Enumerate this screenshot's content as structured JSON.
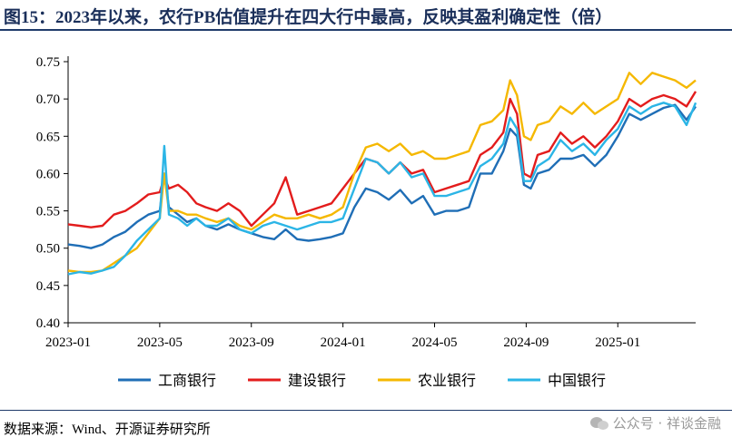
{
  "title": "图15：2023年以来，农行PB估值提升在四大行中最高，反映其盈利确定性（倍）",
  "source": "数据来源：Wind、开源证券研究所",
  "watermark": "公众号 · 祥谈金融",
  "chart_data": {
    "type": "line",
    "title": "",
    "xlabel": "",
    "ylabel": "",
    "ylim": [
      0.4,
      0.75
    ],
    "y_ticks": [
      "0.40",
      "0.45",
      "0.50",
      "0.55",
      "0.60",
      "0.65",
      "0.70",
      "0.75"
    ],
    "x_ticks": [
      "2023-01",
      "2023-05",
      "2023-09",
      "2024-01",
      "2024-05",
      "2024-09",
      "2025-01"
    ],
    "x_tick_months": [
      0,
      4,
      8,
      12,
      16,
      20,
      24
    ],
    "x_range_months": [
      0,
      27.4
    ],
    "legend_position": "bottom",
    "grid": false,
    "series": [
      {
        "name": "工商银行",
        "color": "#1f6eb6",
        "points": [
          [
            0,
            0.505
          ],
          [
            0.5,
            0.503
          ],
          [
            1,
            0.5
          ],
          [
            1.5,
            0.505
          ],
          [
            2,
            0.515
          ],
          [
            2.5,
            0.522
          ],
          [
            3,
            0.535
          ],
          [
            3.5,
            0.545
          ],
          [
            4,
            0.55
          ],
          [
            4.2,
            0.6
          ],
          [
            4.4,
            0.555
          ],
          [
            4.8,
            0.545
          ],
          [
            5.2,
            0.535
          ],
          [
            5.6,
            0.54
          ],
          [
            6,
            0.53
          ],
          [
            6.5,
            0.525
          ],
          [
            7,
            0.532
          ],
          [
            7.5,
            0.525
          ],
          [
            8,
            0.52
          ],
          [
            8.5,
            0.515
          ],
          [
            9,
            0.512
          ],
          [
            9.5,
            0.525
          ],
          [
            10,
            0.512
          ],
          [
            10.5,
            0.51
          ],
          [
            11,
            0.512
          ],
          [
            11.5,
            0.515
          ],
          [
            12,
            0.52
          ],
          [
            12.5,
            0.555
          ],
          [
            13,
            0.58
          ],
          [
            13.5,
            0.575
          ],
          [
            14,
            0.565
          ],
          [
            14.5,
            0.578
          ],
          [
            15,
            0.56
          ],
          [
            15.5,
            0.57
          ],
          [
            16,
            0.545
          ],
          [
            16.5,
            0.55
          ],
          [
            17,
            0.55
          ],
          [
            17.5,
            0.555
          ],
          [
            18,
            0.6
          ],
          [
            18.5,
            0.6
          ],
          [
            19,
            0.63
          ],
          [
            19.3,
            0.66
          ],
          [
            19.6,
            0.65
          ],
          [
            19.9,
            0.585
          ],
          [
            20.2,
            0.58
          ],
          [
            20.5,
            0.6
          ],
          [
            21,
            0.605
          ],
          [
            21.5,
            0.62
          ],
          [
            22,
            0.62
          ],
          [
            22.5,
            0.625
          ],
          [
            23,
            0.61
          ],
          [
            23.5,
            0.625
          ],
          [
            24,
            0.65
          ],
          [
            24.5,
            0.68
          ],
          [
            25,
            0.672
          ],
          [
            25.5,
            0.68
          ],
          [
            26,
            0.688
          ],
          [
            26.5,
            0.692
          ],
          [
            27,
            0.672
          ],
          [
            27.4,
            0.69
          ]
        ]
      },
      {
        "name": "建设银行",
        "color": "#e31c1c",
        "points": [
          [
            0,
            0.532
          ],
          [
            0.5,
            0.53
          ],
          [
            1,
            0.528
          ],
          [
            1.5,
            0.53
          ],
          [
            2,
            0.545
          ],
          [
            2.5,
            0.55
          ],
          [
            3,
            0.56
          ],
          [
            3.5,
            0.572
          ],
          [
            4,
            0.575
          ],
          [
            4.2,
            0.595
          ],
          [
            4.4,
            0.58
          ],
          [
            4.8,
            0.585
          ],
          [
            5.2,
            0.575
          ],
          [
            5.6,
            0.56
          ],
          [
            6,
            0.555
          ],
          [
            6.5,
            0.55
          ],
          [
            7,
            0.56
          ],
          [
            7.5,
            0.55
          ],
          [
            8,
            0.53
          ],
          [
            8.5,
            0.545
          ],
          [
            9,
            0.56
          ],
          [
            9.5,
            0.595
          ],
          [
            10,
            0.545
          ],
          [
            10.5,
            0.55
          ],
          [
            11,
            0.555
          ],
          [
            11.5,
            0.56
          ],
          [
            12,
            0.58
          ],
          [
            12.5,
            0.6
          ],
          [
            13,
            0.62
          ],
          [
            13.5,
            0.615
          ],
          [
            14,
            0.6
          ],
          [
            14.5,
            0.615
          ],
          [
            15,
            0.6
          ],
          [
            15.5,
            0.605
          ],
          [
            16,
            0.575
          ],
          [
            16.5,
            0.58
          ],
          [
            17,
            0.585
          ],
          [
            17.5,
            0.59
          ],
          [
            18,
            0.625
          ],
          [
            18.5,
            0.635
          ],
          [
            19,
            0.655
          ],
          [
            19.3,
            0.7
          ],
          [
            19.6,
            0.68
          ],
          [
            19.9,
            0.6
          ],
          [
            20.2,
            0.595
          ],
          [
            20.5,
            0.625
          ],
          [
            21,
            0.63
          ],
          [
            21.5,
            0.655
          ],
          [
            22,
            0.64
          ],
          [
            22.5,
            0.65
          ],
          [
            23,
            0.635
          ],
          [
            23.5,
            0.65
          ],
          [
            24,
            0.67
          ],
          [
            24.5,
            0.7
          ],
          [
            25,
            0.69
          ],
          [
            25.5,
            0.7
          ],
          [
            26,
            0.705
          ],
          [
            26.5,
            0.7
          ],
          [
            27,
            0.69
          ],
          [
            27.4,
            0.71
          ]
        ]
      },
      {
        "name": "农业银行",
        "color": "#f5b800",
        "points": [
          [
            0,
            0.47
          ],
          [
            0.5,
            0.468
          ],
          [
            1,
            0.468
          ],
          [
            1.5,
            0.47
          ],
          [
            2,
            0.48
          ],
          [
            2.5,
            0.49
          ],
          [
            3,
            0.5
          ],
          [
            3.5,
            0.52
          ],
          [
            4,
            0.54
          ],
          [
            4.2,
            0.6
          ],
          [
            4.4,
            0.55
          ],
          [
            4.8,
            0.55
          ],
          [
            5.2,
            0.545
          ],
          [
            5.6,
            0.545
          ],
          [
            6,
            0.54
          ],
          [
            6.5,
            0.535
          ],
          [
            7,
            0.54
          ],
          [
            7.5,
            0.53
          ],
          [
            8,
            0.525
          ],
          [
            8.5,
            0.535
          ],
          [
            9,
            0.545
          ],
          [
            9.5,
            0.54
          ],
          [
            10,
            0.54
          ],
          [
            10.5,
            0.545
          ],
          [
            11,
            0.54
          ],
          [
            11.5,
            0.545
          ],
          [
            12,
            0.555
          ],
          [
            12.5,
            0.6
          ],
          [
            13,
            0.635
          ],
          [
            13.5,
            0.64
          ],
          [
            14,
            0.63
          ],
          [
            14.5,
            0.64
          ],
          [
            15,
            0.625
          ],
          [
            15.5,
            0.63
          ],
          [
            16,
            0.62
          ],
          [
            16.5,
            0.62
          ],
          [
            17,
            0.625
          ],
          [
            17.5,
            0.63
          ],
          [
            18,
            0.665
          ],
          [
            18.5,
            0.67
          ],
          [
            19,
            0.685
          ],
          [
            19.3,
            0.725
          ],
          [
            19.6,
            0.705
          ],
          [
            19.9,
            0.65
          ],
          [
            20.2,
            0.645
          ],
          [
            20.5,
            0.665
          ],
          [
            21,
            0.67
          ],
          [
            21.5,
            0.69
          ],
          [
            22,
            0.68
          ],
          [
            22.5,
            0.695
          ],
          [
            23,
            0.68
          ],
          [
            23.5,
            0.69
          ],
          [
            24,
            0.7
          ],
          [
            24.5,
            0.735
          ],
          [
            25,
            0.72
          ],
          [
            25.5,
            0.735
          ],
          [
            26,
            0.73
          ],
          [
            26.5,
            0.725
          ],
          [
            27,
            0.715
          ],
          [
            27.4,
            0.725
          ]
        ]
      },
      {
        "name": "中国银行",
        "color": "#2bb5e6",
        "points": [
          [
            0,
            0.465
          ],
          [
            0.5,
            0.468
          ],
          [
            1,
            0.466
          ],
          [
            1.5,
            0.47
          ],
          [
            2,
            0.475
          ],
          [
            2.5,
            0.49
          ],
          [
            3,
            0.51
          ],
          [
            3.5,
            0.525
          ],
          [
            4,
            0.54
          ],
          [
            4.2,
            0.637
          ],
          [
            4.4,
            0.545
          ],
          [
            4.8,
            0.54
          ],
          [
            5.2,
            0.53
          ],
          [
            5.6,
            0.54
          ],
          [
            6,
            0.53
          ],
          [
            6.5,
            0.53
          ],
          [
            7,
            0.54
          ],
          [
            7.5,
            0.525
          ],
          [
            8,
            0.52
          ],
          [
            8.5,
            0.53
          ],
          [
            9,
            0.535
          ],
          [
            9.5,
            0.53
          ],
          [
            10,
            0.525
          ],
          [
            10.5,
            0.53
          ],
          [
            11,
            0.535
          ],
          [
            11.5,
            0.535
          ],
          [
            12,
            0.54
          ],
          [
            12.5,
            0.58
          ],
          [
            13,
            0.62
          ],
          [
            13.5,
            0.615
          ],
          [
            14,
            0.6
          ],
          [
            14.5,
            0.615
          ],
          [
            15,
            0.595
          ],
          [
            15.5,
            0.6
          ],
          [
            16,
            0.57
          ],
          [
            16.5,
            0.57
          ],
          [
            17,
            0.575
          ],
          [
            17.5,
            0.58
          ],
          [
            18,
            0.61
          ],
          [
            18.5,
            0.62
          ],
          [
            19,
            0.64
          ],
          [
            19.3,
            0.675
          ],
          [
            19.6,
            0.66
          ],
          [
            19.9,
            0.59
          ],
          [
            20.2,
            0.59
          ],
          [
            20.5,
            0.61
          ],
          [
            21,
            0.62
          ],
          [
            21.5,
            0.645
          ],
          [
            22,
            0.63
          ],
          [
            22.5,
            0.64
          ],
          [
            23,
            0.625
          ],
          [
            23.5,
            0.645
          ],
          [
            24,
            0.66
          ],
          [
            24.5,
            0.69
          ],
          [
            25,
            0.68
          ],
          [
            25.5,
            0.69
          ],
          [
            26,
            0.695
          ],
          [
            26.5,
            0.69
          ],
          [
            27,
            0.665
          ],
          [
            27.4,
            0.695
          ]
        ]
      }
    ]
  }
}
